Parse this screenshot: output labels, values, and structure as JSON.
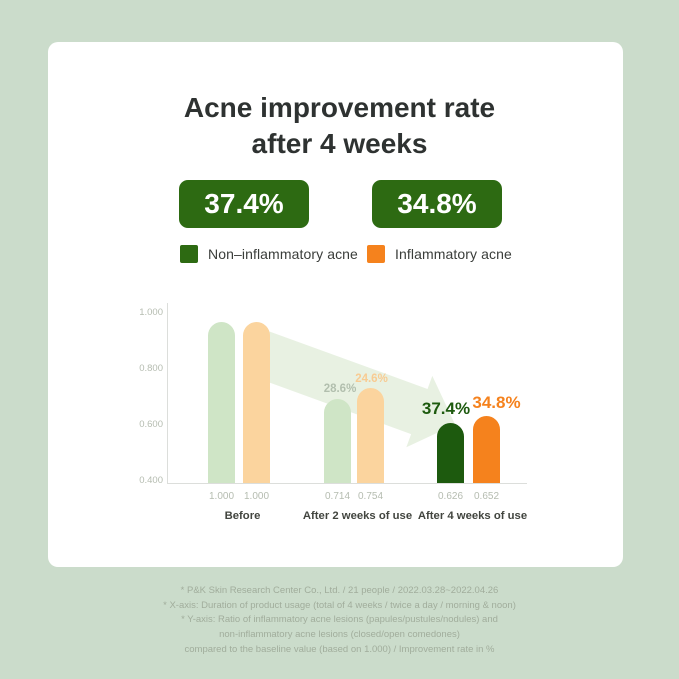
{
  "title": {
    "line1": "Acne improvement rate",
    "line2": "after 4 weeks"
  },
  "badges": [
    {
      "value": "37.4%",
      "color": "#2d6a12"
    },
    {
      "value": "34.8%",
      "color": "#2d6a12"
    }
  ],
  "legend": [
    {
      "label": "Non–inflammatory acne",
      "color": "#2d6a12"
    },
    {
      "label": "Inflammatory acne",
      "color": "#f5821d"
    }
  ],
  "chart_data": {
    "type": "bar",
    "title": "Acne improvement rate after 4 weeks",
    "categories": [
      "Before",
      "After 2 weeks of use",
      "After 4 weeks of use"
    ],
    "series": [
      {
        "id": "non-inflammatory",
        "name": "Non-inflammatory acne",
        "values": [
          1.0,
          0.714,
          0.626
        ],
        "light_color": "#cfe5c6",
        "strong_color": "#1d5a0e"
      },
      {
        "id": "inflammatory",
        "name": "Inflammatory acne",
        "values": [
          1.0,
          0.754,
          0.652
        ],
        "light_color": "#fbd49e",
        "strong_color": "#f5821d"
      }
    ],
    "value_labels": [
      [
        "1.000",
        "1.000"
      ],
      [
        "0.714",
        "0.754"
      ],
      [
        "0.626",
        "0.652"
      ]
    ],
    "improvement_labels": [
      [
        null,
        null
      ],
      [
        "28.6%",
        "24.6%"
      ],
      [
        "37.4%",
        "34.8%"
      ]
    ],
    "y_ticks": [
      "1.000",
      "0.800",
      "0.600",
      "0.400"
    ],
    "ylim": [
      0.4,
      1.0
    ],
    "legend_position": "top",
    "grid": false
  },
  "footnotes": [
    "* P&K Skin Research Center Co., Ltd. / 21 people / 2022.03.28~2022.04.26",
    "* X-axis: Duration of product usage (total of 4 weeks / twice a day / morning & noon)",
    "* Y-axis: Ratio of inflammatory acne lesions (papules/pustules/nodules) and",
    "non-inflammatory acne lesions (closed/open comedones)",
    "compared to the baseline value (based on 1.000) / Improvement rate in %"
  ]
}
